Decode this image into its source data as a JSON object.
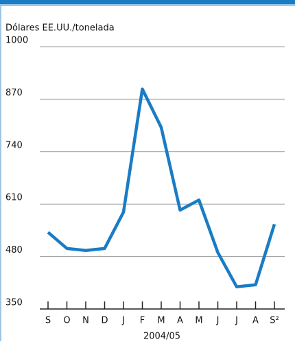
{
  "chart_data": {
    "type": "line",
    "ylabel": "Dólares EE.UU./tonelada",
    "xlabel": "2004/05",
    "categories": [
      "S",
      "O",
      "N",
      "D",
      "J",
      "F",
      "M",
      "A",
      "M",
      "J",
      "J",
      "A",
      "S²"
    ],
    "series": [
      {
        "name": null,
        "color": "#1a7cc4",
        "values": [
          540,
          500,
          495,
          500,
          590,
          895,
          800,
          595,
          620,
          490,
          405,
          410,
          560
        ]
      }
    ],
    "ylim": [
      350,
      1000
    ],
    "yticks": [
      350,
      480,
      610,
      740,
      870,
      1000
    ],
    "grid": true
  }
}
